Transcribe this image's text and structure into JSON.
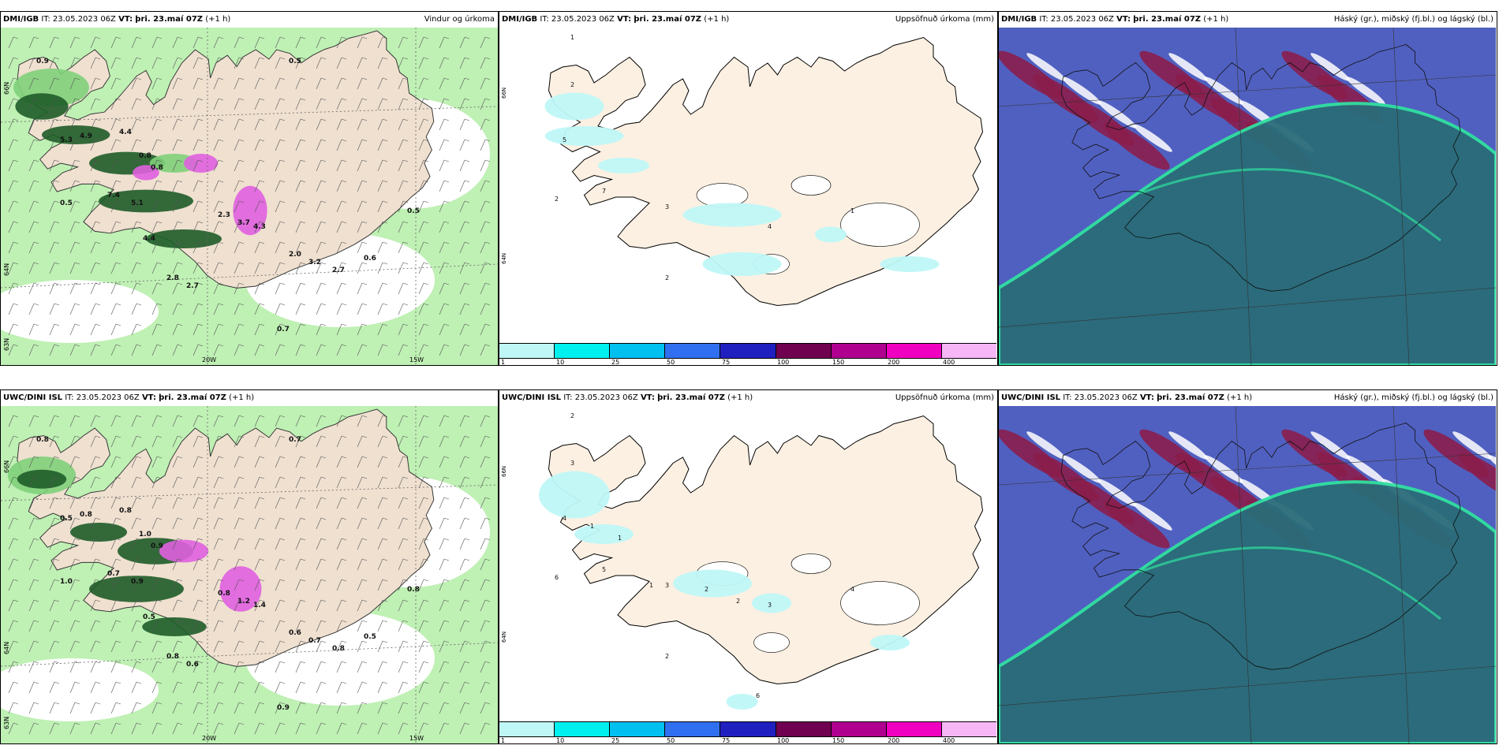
{
  "panels": [
    {
      "id": "p1",
      "model": "DMI/IGB",
      "it": "IT: 23.05.2023 06Z",
      "vt_label": "VT:",
      "vt": "þri. 23.maí 07Z",
      "lead": "(+1 h)",
      "title": "Vindur og úrkoma",
      "kind": "wind"
    },
    {
      "id": "p2",
      "model": "DMI/IGB",
      "it": "IT: 23.05.2023 06Z",
      "vt_label": "VT:",
      "vt": "þri. 23.maí 07Z",
      "lead": "(+1 h)",
      "title": "Uppsöfnuð úrkoma (mm)",
      "kind": "accum"
    },
    {
      "id": "p3",
      "model": "DMI/IGB",
      "it": "IT: 23.05.2023 06Z",
      "vt_label": "VT:",
      "vt": "þri. 23.maí 07Z",
      "lead": "(+1 h)",
      "title": "Háský (gr.), miðský (fj.bl.) og lágský (bl.)",
      "kind": "cloud"
    },
    {
      "id": "p4",
      "model": "UWC/DINI ISL",
      "it": "IT: 23.05.2023 06Z",
      "vt_label": "VT:",
      "vt": "þri. 23.maí 07Z",
      "lead": "(+1 h)",
      "title": "",
      "kind": "wind"
    },
    {
      "id": "p5",
      "model": "UWC/DINI ISL",
      "it": "IT: 23.05.2023 06Z",
      "vt_label": "VT:",
      "vt": "þri. 23.maí 07Z",
      "lead": "(+1 h)",
      "title": "Uppsöfnuð úrkoma (mm)",
      "kind": "accum"
    },
    {
      "id": "p6",
      "model": "UWC/DINI ISL",
      "it": "IT: 23.05.2023 06Z",
      "vt_label": "VT:",
      "vt": "þri. 23.maí 07Z",
      "lead": "(+1 h)",
      "title": "Háský (gr.), miðský (fj.bl.) og lágský (bl.)",
      "kind": "cloud"
    }
  ],
  "map_labels": {
    "lon1": "20W",
    "lon2": "15W",
    "lat1": "66N",
    "lat2": "64N",
    "lat3": "63N"
  },
  "wind_values_top": [
    "0.9",
    "0.5",
    "4.9",
    "4.4",
    "5.3",
    "0.8",
    "0.8",
    "7.4",
    "5.1",
    "0.5",
    "2.3",
    "3.7",
    "4.3",
    "0.5",
    "4.4",
    "2.0",
    "3.2",
    "2.7",
    "0.6",
    "2.8",
    "2.7",
    "0.7"
  ],
  "wind_values_bottom": [
    "0.8",
    "0.7",
    "0.8",
    "0.8",
    "0.5",
    "1.0",
    "0.9",
    "0.7",
    "0.9",
    "1.0",
    "0.8",
    "1.2",
    "1.4",
    "0.8",
    "0.5",
    "0.6",
    "0.7",
    "0.8",
    "0.5",
    "0.8",
    "0.6",
    "0.9"
  ],
  "accum_values_top": [
    "1",
    "2",
    "5",
    "7",
    "2",
    "3",
    "4",
    "1",
    "2"
  ],
  "accum_values_bottom": [
    "2",
    "3",
    "4",
    "5",
    "6",
    "3",
    "3",
    "4",
    "2",
    "1",
    "1",
    "1",
    "2",
    "2",
    "6"
  ],
  "colorbar": {
    "labels": [
      "1",
      "10",
      "25",
      "50",
      "75",
      "100",
      "150",
      "200",
      "400"
    ],
    "colors": [
      "#bff7f7",
      "#00f0f0",
      "#00c0f0",
      "#3070f0",
      "#2020c0",
      "#700050",
      "#b00090",
      "#f000c0",
      "#f7b7f7"
    ]
  },
  "colors": {
    "land": "#fcf0e2",
    "wind_light": "#bff0b4",
    "wind_mid": "#7fd07a",
    "wind_dark": "#1e5c28",
    "precip_pink": "#e060e0",
    "cloud_high": "#5060c0",
    "cloud_mid": "#8a1e4c",
    "cloud_low": "#2a6c78",
    "cloud_edge": "#30e0a0"
  }
}
